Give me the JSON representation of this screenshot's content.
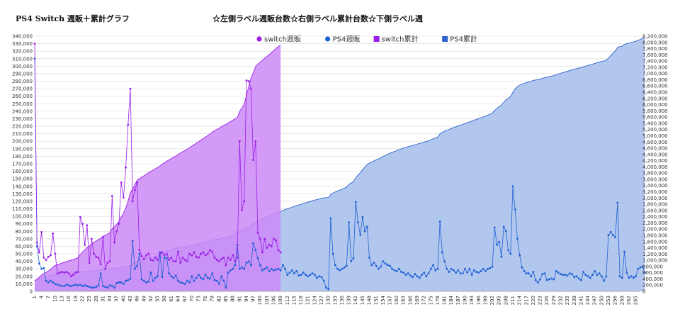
{
  "header": {
    "left_title": "PS4 Switch 週販＋累計グラフ",
    "center_title": "☆左側ラベル週販台数☆右側ラベル累計台数☆下側ラベル週"
  },
  "chart_data": {
    "type": "line",
    "weeks": 267,
    "left_axis": {
      "min": 0,
      "max": 340000,
      "step": 10000
    },
    "right_axis": {
      "min": 0,
      "max": 8200000,
      "step": 200000
    },
    "x_ticks": [
      1,
      4,
      7,
      10,
      13,
      16,
      19,
      22,
      25,
      28,
      31,
      34,
      37,
      40,
      43,
      46,
      49,
      52,
      55,
      58,
      61,
      64,
      67,
      70,
      73,
      76,
      79,
      82,
      85,
      88,
      91,
      94,
      97,
      100,
      103,
      106,
      109,
      112,
      115,
      118,
      121,
      124,
      127,
      130,
      133,
      136,
      139,
      142,
      145,
      148,
      151,
      154,
      157,
      160,
      163,
      166,
      169,
      172,
      175,
      178,
      181,
      184,
      187,
      190,
      193,
      196,
      199,
      202,
      205,
      208,
      211,
      214,
      217,
      220,
      223,
      226,
      229,
      232,
      235,
      238,
      241,
      244,
      247,
      250,
      253,
      256,
      259,
      262,
      265
    ],
    "grid": true,
    "legend_position": "top",
    "series": [
      {
        "name": "switch週販",
        "kind": "line",
        "axis": "left",
        "color": "#9b1fe8",
        "values": [
          330000,
          65000,
          52000,
          79000,
          45000,
          42000,
          46000,
          48000,
          77000,
          50000,
          24000,
          25000,
          26000,
          25000,
          26000,
          24000,
          20000,
          22000,
          25000,
          26000,
          99000,
          90000,
          62000,
          88000,
          38000,
          70000,
          50000,
          46000,
          45000,
          36000,
          72000,
          30000,
          38000,
          40000,
          127000,
          65000,
          80000,
          90000,
          145000,
          125000,
          165000,
          222000,
          270000,
          120000,
          135000,
          145000,
          55000,
          47000,
          43000,
          48000,
          50000,
          42000,
          41000,
          45000,
          42000,
          50000,
          52000,
          48000,
          50000,
          42000,
          45000,
          40000,
          40000,
          53000,
          38000,
          45000,
          42000,
          40000,
          50000,
          48000,
          52000,
          46000,
          45000,
          50000,
          52000,
          48000,
          50000,
          55000,
          53000,
          45000,
          42000,
          40000,
          43000,
          45000,
          35000,
          45000,
          42000,
          48000,
          40000,
          45000,
          200000,
          108000,
          120000,
          281000,
          280000,
          270000,
          175000,
          200000,
          78000,
          70000,
          52000,
          70000,
          58000,
          62000,
          60000,
          70000,
          68000,
          55000,
          52000
        ]
      },
      {
        "name": "PS4週販",
        "kind": "line",
        "axis": "left",
        "color": "#1f5fd6",
        "values": [
          310000,
          60000,
          37000,
          30000,
          31000,
          14000,
          12000,
          14000,
          12000,
          10000,
          9000,
          8000,
          7000,
          7000,
          9000,
          8000,
          7000,
          8000,
          9000,
          8000,
          9000,
          7000,
          8000,
          7000,
          6000,
          5000,
          5000,
          6000,
          8000,
          24000,
          7000,
          6000,
          5000,
          8000,
          7000,
          5000,
          11000,
          12000,
          12000,
          10000,
          14000,
          15000,
          17000,
          67000,
          30000,
          34000,
          50000,
          16000,
          14000,
          12000,
          13000,
          25000,
          14000,
          18000,
          20000,
          52000,
          19000,
          45000,
          44000,
          24000,
          20000,
          18000,
          21000,
          14000,
          12000,
          11000,
          10000,
          14000,
          12000,
          20000,
          14000,
          18000,
          22000,
          18000,
          16000,
          22000,
          18000,
          17000,
          24000,
          15000,
          14000,
          10000,
          20000,
          14000,
          5000,
          25000,
          28000,
          30000,
          35000,
          62000,
          30000,
          32000,
          30000,
          38000,
          40000,
          35000,
          64000,
          55000,
          44000,
          35000,
          28000,
          30000,
          32000,
          27000,
          30000,
          28000,
          29000,
          30000,
          28000,
          35000,
          30000,
          22000,
          25000,
          28000,
          24000,
          27000,
          21000,
          22000,
          25000,
          22000,
          20000,
          22000,
          24000,
          22000,
          18000,
          20000,
          19000,
          14000,
          5000,
          3000,
          97000,
          50000,
          35000,
          30000,
          28000,
          30000,
          32000,
          34000,
          92000,
          40000,
          44000,
          119000,
          92000,
          75000,
          99000,
          80000,
          86000,
          45000,
          35000,
          38000,
          34000,
          30000,
          33000,
          40000,
          37000,
          35000,
          34000,
          30000,
          28000,
          27000,
          30000,
          26000,
          25000,
          22000,
          24000,
          21000,
          19000,
          23000,
          20000,
          18000,
          22000,
          25000,
          20000,
          24000,
          30000,
          35000,
          28000,
          30000,
          93000,
          52000,
          40000,
          30000,
          26000,
          30000,
          28000,
          25000,
          28000,
          24000,
          24000,
          30000,
          25000,
          30000,
          22000,
          28000,
          26000,
          25000,
          27000,
          30000,
          27000,
          30000,
          31000,
          33000,
          85000,
          62000,
          66000,
          46000,
          86000,
          80000,
          55000,
          50000,
          140000,
          109000,
          70000,
          48000,
          32000,
          27000,
          24000,
          24000,
          20000,
          26000,
          15000,
          12000,
          16000,
          23000,
          24000,
          15000,
          16000,
          17000,
          16000,
          27000,
          25000,
          23000,
          22000,
          22000,
          21000,
          24000,
          23000,
          19000,
          20000,
          17000,
          15000,
          26000,
          22000,
          20000,
          18000,
          22000,
          27000,
          22000,
          24000,
          20000,
          14000,
          20000,
          75000,
          79000,
          75000,
          72000,
          118000,
          20000,
          18000,
          53000,
          25000,
          18000,
          20000,
          18000,
          20000,
          30000,
          32000,
          33000,
          25000
        ]
      },
      {
        "name": "switch累計",
        "kind": "area",
        "axis": "right",
        "color": "#cc88f7",
        "stroke": "#9b1fe8",
        "values": [
          330000,
          395000,
          447000,
          526000,
          571000,
          613000,
          659000,
          707000,
          784000,
          834000,
          858000,
          883000,
          909000,
          934000,
          960000,
          984000,
          1004000,
          1026000,
          1051000,
          1077000,
          1176000,
          1266000,
          1328000,
          1416000,
          1454000,
          1524000,
          1574000,
          1620000,
          1665000,
          1701000,
          1773000,
          1803000,
          1841000,
          1881000,
          2008000,
          2073000,
          2153000,
          2243000,
          2388000,
          2513000,
          2678000,
          2900000,
          3170000,
          3290000,
          3425000,
          3570000,
          3625000,
          3672000,
          3715000,
          3763000,
          3813000,
          3855000,
          3896000,
          3941000,
          3983000,
          4033000,
          4085000,
          4133000,
          4183000,
          4225000,
          4270000,
          4310000,
          4350000,
          4403000,
          4441000,
          4486000,
          4528000,
          4568000,
          4618000,
          4666000,
          4718000,
          4764000,
          4809000,
          4859000,
          4911000,
          4959000,
          5009000,
          5064000,
          5117000,
          5162000,
          5204000,
          5244000,
          5287000,
          5332000,
          5367000,
          5412000,
          5454000,
          5502000,
          5542000,
          5587000,
          5787000,
          5895000,
          6015000,
          6296000,
          6576000,
          6846000,
          7021000,
          7221000,
          7299000,
          7369000,
          7421000,
          7491000,
          7549000,
          7611000,
          7671000,
          7741000,
          7809000,
          7864000,
          7916000
        ]
      },
      {
        "name": "PS4累計",
        "kind": "area",
        "axis": "right",
        "color": "#aec4ec",
        "stroke": "#2e62cf",
        "values": [
          310000,
          370000,
          407000,
          437000,
          468000,
          482000,
          494000,
          508000,
          520000,
          530000,
          539000,
          547000,
          554000,
          561000,
          570000,
          578000,
          585000,
          593000,
          602000,
          610000,
          619000,
          626000,
          634000,
          641000,
          647000,
          652000,
          657000,
          663000,
          671000,
          695000,
          702000,
          708000,
          713000,
          721000,
          728000,
          733000,
          744000,
          756000,
          768000,
          778000,
          792000,
          807000,
          824000,
          891000,
          921000,
          955000,
          1005000,
          1021000,
          1035000,
          1047000,
          1060000,
          1085000,
          1099000,
          1117000,
          1137000,
          1189000,
          1208000,
          1253000,
          1297000,
          1321000,
          1341000,
          1359000,
          1380000,
          1394000,
          1406000,
          1417000,
          1427000,
          1441000,
          1453000,
          1473000,
          1487000,
          1505000,
          1527000,
          1545000,
          1561000,
          1583000,
          1601000,
          1618000,
          1642000,
          1657000,
          1671000,
          1681000,
          1701000,
          1715000,
          1720000,
          1745000,
          1773000,
          1803000,
          1838000,
          1900000,
          1930000,
          1962000,
          1992000,
          2030000,
          2070000,
          2105000,
          2169000,
          2224000,
          2268000,
          2303000,
          2331000,
          2361000,
          2393000,
          2420000,
          2450000,
          2478000,
          2507000,
          2537000,
          2565000,
          2600000,
          2630000,
          2652000,
          2677000,
          2705000,
          2729000,
          2756000,
          2777000,
          2799000,
          2824000,
          2846000,
          2866000,
          2888000,
          2912000,
          2934000,
          2952000,
          2972000,
          2991000,
          3005000,
          3010000,
          3013000,
          3110000,
          3160000,
          3195000,
          3225000,
          3253000,
          3283000,
          3315000,
          3349000,
          3441000,
          3481000,
          3525000,
          3644000,
          3736000,
          3811000,
          3910000,
          3990000,
          4076000,
          4121000,
          4156000,
          4194000,
          4228000,
          4258000,
          4291000,
          4331000,
          4368000,
          4403000,
          4437000,
          4467000,
          4495000,
          4522000,
          4552000,
          4578000,
          4603000,
          4625000,
          4649000,
          4670000,
          4689000,
          4712000,
          4732000,
          4750000,
          4772000,
          4797000,
          4817000,
          4841000,
          4871000,
          4906000,
          4934000,
          4964000,
          5057000,
          5109000,
          5149000,
          5179000,
          5205000,
          5235000,
          5263000,
          5288000,
          5316000,
          5340000,
          5364000,
          5394000,
          5419000,
          5449000,
          5471000,
          5499000,
          5525000,
          5550000,
          5577000,
          5607000,
          5634000,
          5664000,
          5695000,
          5728000,
          5813000,
          5875000,
          5941000,
          5987000,
          6073000,
          6153000,
          6208000,
          6258000,
          6398000,
          6507000,
          6577000,
          6625000,
          6657000,
          6684000,
          6708000,
          6732000,
          6752000,
          6778000,
          6793000,
          6805000,
          6821000,
          6844000,
          6868000,
          6883000,
          6899000,
          6916000,
          6932000,
          6959000,
          6984000,
          7007000,
          7029000,
          7051000,
          7072000,
          7096000,
          7119000,
          7138000,
          7158000,
          7175000,
          7190000,
          7216000,
          7238000,
          7258000,
          7276000,
          7298000,
          7325000,
          7347000,
          7371000,
          7391000,
          7405000,
          7425000,
          7500000,
          7579000,
          7654000,
          7726000,
          7844000,
          7864000,
          7882000,
          7935000,
          7960000,
          7978000,
          7998000,
          8016000,
          8036000,
          8066000,
          8098000,
          8131000,
          8156000
        ]
      }
    ]
  }
}
